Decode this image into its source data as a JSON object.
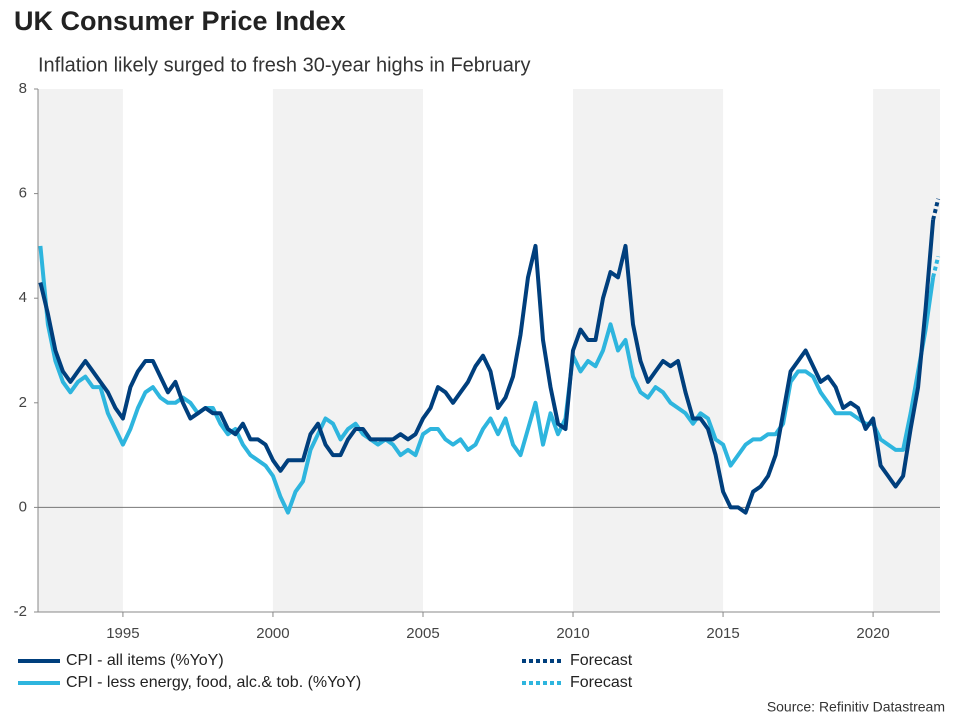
{
  "chart_data": {
    "type": "line",
    "title": "UK Consumer Price Index",
    "subtitle": "Inflation likely surged to fresh 30-year highs in February",
    "source": "Source: Refinitiv Datastream",
    "x": [
      1992.25,
      1992.5,
      1992.75,
      1993,
      1993.25,
      1993.5,
      1993.75,
      1994,
      1994.25,
      1994.5,
      1994.75,
      1995,
      1995.25,
      1995.5,
      1995.75,
      1996,
      1996.25,
      1996.5,
      1996.75,
      1997,
      1997.25,
      1997.5,
      1997.75,
      1998,
      1998.25,
      1998.5,
      1998.75,
      1999,
      1999.25,
      1999.5,
      1999.75,
      2000,
      2000.25,
      2000.5,
      2000.75,
      2001,
      2001.25,
      2001.5,
      2001.75,
      2002,
      2002.25,
      2002.5,
      2002.75,
      2003,
      2003.25,
      2003.5,
      2003.75,
      2004,
      2004.25,
      2004.5,
      2004.75,
      2005,
      2005.25,
      2005.5,
      2005.75,
      2006,
      2006.25,
      2006.5,
      2006.75,
      2007,
      2007.25,
      2007.5,
      2007.75,
      2008,
      2008.25,
      2008.5,
      2008.75,
      2009,
      2009.25,
      2009.5,
      2009.75,
      2010,
      2010.25,
      2010.5,
      2010.75,
      2011,
      2011.25,
      2011.5,
      2011.75,
      2012,
      2012.25,
      2012.5,
      2012.75,
      2013,
      2013.25,
      2013.5,
      2013.75,
      2014,
      2014.25,
      2014.5,
      2014.75,
      2015,
      2015.25,
      2015.5,
      2015.75,
      2016,
      2016.25,
      2016.5,
      2016.75,
      2017,
      2017.25,
      2017.5,
      2017.75,
      2018,
      2018.25,
      2018.5,
      2018.75,
      2019,
      2019.25,
      2019.5,
      2019.75,
      2020,
      2020.25,
      2020.5,
      2020.75,
      2021,
      2021.25,
      2021.5,
      2021.75,
      2022
    ],
    "series": [
      {
        "name": "CPI - all items (%YoY)",
        "color": "#003f7d",
        "values": [
          4.3,
          3.7,
          3.0,
          2.6,
          2.4,
          2.6,
          2.8,
          2.6,
          2.4,
          2.2,
          1.9,
          1.7,
          2.3,
          2.6,
          2.8,
          2.8,
          2.5,
          2.2,
          2.4,
          2.0,
          1.7,
          1.8,
          1.9,
          1.8,
          1.8,
          1.5,
          1.4,
          1.6,
          1.3,
          1.3,
          1.2,
          0.9,
          0.7,
          0.9,
          0.9,
          0.9,
          1.4,
          1.6,
          1.2,
          1.0,
          1.0,
          1.3,
          1.5,
          1.5,
          1.3,
          1.3,
          1.3,
          1.3,
          1.4,
          1.3,
          1.4,
          1.7,
          1.9,
          2.3,
          2.2,
          2.0,
          2.2,
          2.4,
          2.7,
          2.9,
          2.6,
          1.9,
          2.1,
          2.5,
          3.3,
          4.4,
          5.0,
          3.2,
          2.3,
          1.6,
          1.5,
          3.0,
          3.4,
          3.2,
          3.2,
          4.0,
          4.5,
          4.4,
          5.0,
          3.5,
          2.8,
          2.4,
          2.6,
          2.8,
          2.7,
          2.8,
          2.2,
          1.7,
          1.7,
          1.5,
          1.0,
          0.3,
          0.0,
          0.0,
          -0.1,
          0.3,
          0.4,
          0.6,
          1.0,
          1.8,
          2.6,
          2.8,
          3.0,
          2.7,
          2.4,
          2.5,
          2.3,
          1.9,
          2.0,
          1.9,
          1.5,
          1.7,
          0.8,
          0.6,
          0.4,
          0.6,
          1.5,
          2.3,
          3.8,
          5.5
        ]
      },
      {
        "name": "CPI - less energy, food, alc.& tob. (%YoY)",
        "color": "#2eb5de",
        "values": [
          5.0,
          3.5,
          2.8,
          2.4,
          2.2,
          2.4,
          2.5,
          2.3,
          2.3,
          1.8,
          1.5,
          1.2,
          1.5,
          1.9,
          2.2,
          2.3,
          2.1,
          2.0,
          2.0,
          2.1,
          2.0,
          1.8,
          1.9,
          1.9,
          1.6,
          1.4,
          1.5,
          1.2,
          1.0,
          0.9,
          0.8,
          0.6,
          0.2,
          -0.1,
          0.3,
          0.5,
          1.1,
          1.4,
          1.7,
          1.6,
          1.3,
          1.5,
          1.6,
          1.4,
          1.3,
          1.2,
          1.3,
          1.2,
          1.0,
          1.1,
          1.0,
          1.4,
          1.5,
          1.5,
          1.3,
          1.2,
          1.3,
          1.1,
          1.2,
          1.5,
          1.7,
          1.4,
          1.7,
          1.2,
          1.0,
          1.5,
          2.0,
          1.2,
          1.8,
          1.4,
          1.7,
          2.9,
          2.6,
          2.8,
          2.7,
          3.0,
          3.5,
          3.0,
          3.2,
          2.5,
          2.2,
          2.1,
          2.3,
          2.2,
          2.0,
          1.9,
          1.8,
          1.6,
          1.8,
          1.7,
          1.3,
          1.2,
          0.8,
          1.0,
          1.2,
          1.3,
          1.3,
          1.4,
          1.4,
          1.6,
          2.4,
          2.6,
          2.6,
          2.5,
          2.2,
          2.0,
          1.8,
          1.8,
          1.8,
          1.7,
          1.6,
          1.6,
          1.3,
          1.2,
          1.1,
          1.1,
          1.8,
          2.6,
          3.4,
          4.4
        ]
      },
      {
        "name": "Forecast",
        "color": "#003f7d",
        "dashed": true,
        "x": [
          2022,
          2022.17
        ],
        "values": [
          5.5,
          5.9
        ]
      },
      {
        "name": "Forecast",
        "color": "#2eb5de",
        "dashed": true,
        "x": [
          2022,
          2022.17
        ],
        "values": [
          4.4,
          4.8
        ]
      }
    ],
    "xlim": [
      1992.17,
      2022.23
    ],
    "xticks": [
      1995,
      2000,
      2005,
      2010,
      2015,
      2020
    ],
    "ylim": [
      -2,
      8
    ],
    "yticks": [
      -2,
      0,
      2,
      4,
      6,
      8
    ]
  }
}
